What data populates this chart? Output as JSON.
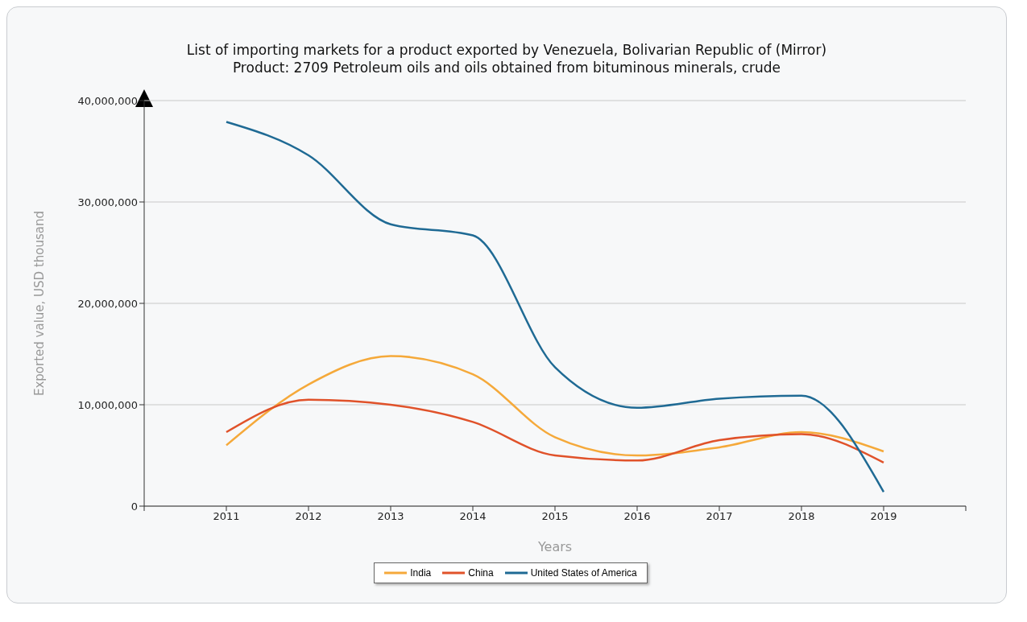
{
  "chart_data": {
    "type": "line",
    "title": "List of importing markets for a product exported by Venezuela, Bolivarian Republic of (Mirror)",
    "subtitle": "Product: 2709 Petroleum oils and oils obtained from bituminous minerals, crude",
    "xlabel": "Years",
    "ylabel": "Exported value, USD thousand",
    "x": [
      2011,
      2012,
      2013,
      2014,
      2015,
      2016,
      2017,
      2018,
      2019
    ],
    "series": [
      {
        "name": "India",
        "color": "#f5a93a",
        "values": [
          6000000,
          12000000,
          14800000,
          13000000,
          6800000,
          5000000,
          5800000,
          7300000,
          5400000
        ]
      },
      {
        "name": "China",
        "color": "#e0522a",
        "values": [
          7300000,
          10500000,
          10000000,
          8300000,
          5000000,
          4500000,
          6500000,
          7100000,
          4300000
        ]
      },
      {
        "name": "United States of America",
        "color": "#1f6a94",
        "values": [
          37900000,
          34600000,
          27800000,
          26700000,
          13700000,
          9700000,
          10600000,
          10900000,
          1400000
        ]
      }
    ],
    "xlim": [
      2010,
      2020
    ],
    "xticks": [
      {
        "value": 2010,
        "label": null
      },
      2011,
      2012,
      2013,
      2014,
      2015,
      2016,
      2017,
      2018,
      2019,
      {
        "value": 2020,
        "label": null
      }
    ],
    "ylim": [
      0,
      40000000
    ],
    "yticks": [
      0,
      {
        "value": 10000000,
        "label": "10,000,000"
      },
      {
        "value": 20000000,
        "label": "20,000,000"
      },
      {
        "value": 30000000,
        "label": "30,000,000"
      },
      {
        "value": 40000000,
        "label": "40,000,000"
      }
    ],
    "grid": "y",
    "legend": "bottom",
    "marker": "none",
    "line_style": "solid"
  }
}
